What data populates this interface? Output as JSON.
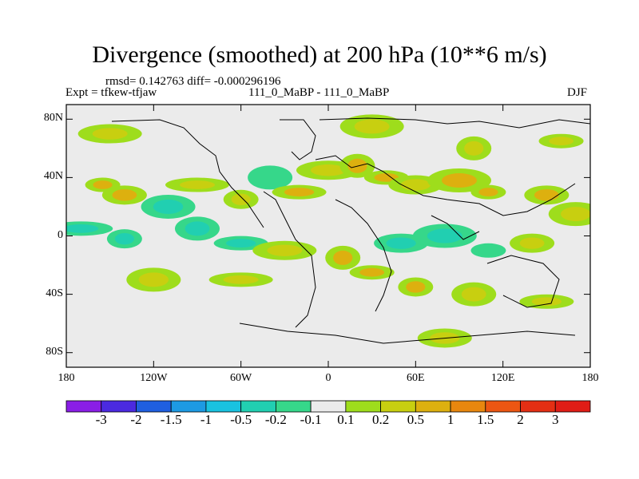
{
  "figure": {
    "title": "Divergence (smoothed) at 200 hPa (10**6 m/s)",
    "stats": "rmsd= 0.142763 diff= -0.000296196",
    "experiment": "Expt = tfkew-tfjaw",
    "cases": "111_0_MaBP - 111_0_MaBP",
    "season": "DJF"
  },
  "chart_data": {
    "type": "heatmap",
    "title": "Divergence (smoothed) at 200 hPa (10**6 m/s)",
    "xlim": [
      -180,
      180
    ],
    "ylim": [
      -90,
      90
    ],
    "x_ticks": [
      "180",
      "120W",
      "60W",
      "0",
      "60E",
      "120E",
      "180"
    ],
    "y_ticks": [
      "80N",
      "40N",
      "0",
      "40S",
      "80S"
    ],
    "y_tick_values": [
      80,
      40,
      0,
      -40,
      -80
    ],
    "legend": {
      "labels": [
        "-3",
        "-2",
        "-1.5",
        "-1",
        "-0.5",
        "-0.2",
        "-0.1",
        "0.1",
        "0.2",
        "0.5",
        "1",
        "1.5",
        "2",
        "3"
      ],
      "colors": [
        "#8a1ee6",
        "#4b2ae0",
        "#1f5fe0",
        "#1d9ae3",
        "#19c2e0",
        "#21cfb1",
        "#36d78a",
        "#ebebeb",
        "#9edd1c",
        "#c8cf10",
        "#ddb00f",
        "#e8870e",
        "#ec5612",
        "#e42f14",
        "#e01d16"
      ]
    },
    "features": [
      {
        "lon": -155,
        "lat": 35,
        "value": 0.6
      },
      {
        "lon": -140,
        "lat": 28,
        "value": 0.9
      },
      {
        "lon": -110,
        "lat": 20,
        "value": -0.3
      },
      {
        "lon": -90,
        "lat": 35,
        "value": 0.4
      },
      {
        "lon": -60,
        "lat": 25,
        "value": 0.3
      },
      {
        "lon": -40,
        "lat": 40,
        "value": -0.2
      },
      {
        "lon": -20,
        "lat": 30,
        "value": 0.5
      },
      {
        "lon": 0,
        "lat": 45,
        "value": 0.4
      },
      {
        "lon": 20,
        "lat": 48,
        "value": 0.6
      },
      {
        "lon": 40,
        "lat": 40,
        "value": 0.5
      },
      {
        "lon": 60,
        "lat": 35,
        "value": 0.4
      },
      {
        "lon": 90,
        "lat": 38,
        "value": 0.7
      },
      {
        "lon": 110,
        "lat": 30,
        "value": 0.5
      },
      {
        "lon": 150,
        "lat": 28,
        "value": 0.6
      },
      {
        "lon": 170,
        "lat": 15,
        "value": 0.3
      },
      {
        "lon": -170,
        "lat": 5,
        "value": -0.4
      },
      {
        "lon": -140,
        "lat": -2,
        "value": -0.3
      },
      {
        "lon": -90,
        "lat": 5,
        "value": -0.5
      },
      {
        "lon": -60,
        "lat": -5,
        "value": -0.3
      },
      {
        "lon": -30,
        "lat": -10,
        "value": 0.4
      },
      {
        "lon": 10,
        "lat": -15,
        "value": 0.6
      },
      {
        "lon": 30,
        "lat": -25,
        "value": 0.5
      },
      {
        "lon": 50,
        "lat": -5,
        "value": -0.4
      },
      {
        "lon": 80,
        "lat": 0,
        "value": -0.3
      },
      {
        "lon": 110,
        "lat": -10,
        "value": -0.2
      },
      {
        "lon": 140,
        "lat": -5,
        "value": 0.4
      },
      {
        "lon": -120,
        "lat": -30,
        "value": 0.3
      },
      {
        "lon": -60,
        "lat": -30,
        "value": 0.4
      },
      {
        "lon": 60,
        "lat": -35,
        "value": 0.5
      },
      {
        "lon": 100,
        "lat": -40,
        "value": 0.3
      },
      {
        "lon": 150,
        "lat": -45,
        "value": 0.4
      },
      {
        "lon": -150,
        "lat": 70,
        "value": 0.3
      },
      {
        "lon": 100,
        "lat": 60,
        "value": 0.4
      },
      {
        "lon": 160,
        "lat": 65,
        "value": 0.3
      },
      {
        "lon": 80,
        "lat": -70,
        "value": 0.2
      },
      {
        "lon": 30,
        "lat": 75,
        "value": 0.3
      }
    ]
  }
}
